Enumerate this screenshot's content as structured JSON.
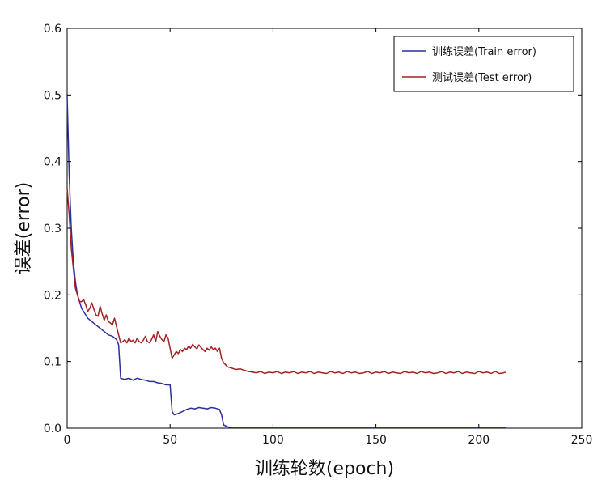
{
  "chart_data": {
    "type": "line",
    "xlabel": "训练轮数(epoch)",
    "ylabel": "误差(error)",
    "xlim": [
      0,
      250
    ],
    "ylim": [
      0,
      0.6
    ],
    "xticks": [
      0,
      50,
      100,
      150,
      200,
      250
    ],
    "yticks": [
      0.0,
      0.1,
      0.2,
      0.3,
      0.4,
      0.5,
      0.6
    ],
    "grid": false,
    "legend_position": "top-right",
    "series": [
      {
        "name": "训练误差(Train error)",
        "color": "#2b2f9a",
        "points": [
          [
            0,
            0.5
          ],
          [
            1,
            0.38
          ],
          [
            2,
            0.3
          ],
          [
            3,
            0.25
          ],
          [
            4,
            0.22
          ],
          [
            5,
            0.2
          ],
          [
            6,
            0.19
          ],
          [
            7,
            0.18
          ],
          [
            8,
            0.175
          ],
          [
            10,
            0.165
          ],
          [
            12,
            0.16
          ],
          [
            14,
            0.155
          ],
          [
            16,
            0.15
          ],
          [
            18,
            0.145
          ],
          [
            20,
            0.14
          ],
          [
            22,
            0.138
          ],
          [
            24,
            0.133
          ],
          [
            25,
            0.125
          ],
          [
            26,
            0.075
          ],
          [
            28,
            0.073
          ],
          [
            30,
            0.075
          ],
          [
            32,
            0.072
          ],
          [
            34,
            0.075
          ],
          [
            36,
            0.073
          ],
          [
            38,
            0.072
          ],
          [
            40,
            0.07
          ],
          [
            42,
            0.07
          ],
          [
            44,
            0.068
          ],
          [
            46,
            0.067
          ],
          [
            48,
            0.065
          ],
          [
            50,
            0.065
          ],
          [
            51,
            0.025
          ],
          [
            52,
            0.02
          ],
          [
            54,
            0.022
          ],
          [
            56,
            0.025
          ],
          [
            58,
            0.028
          ],
          [
            60,
            0.03
          ],
          [
            62,
            0.029
          ],
          [
            64,
            0.031
          ],
          [
            66,
            0.03
          ],
          [
            68,
            0.029
          ],
          [
            70,
            0.031
          ],
          [
            72,
            0.03
          ],
          [
            74,
            0.028
          ],
          [
            75,
            0.02
          ],
          [
            76,
            0.005
          ],
          [
            78,
            0.002
          ],
          [
            80,
            0.001
          ],
          [
            90,
            0.001
          ],
          [
            100,
            0.001
          ],
          [
            150,
            0.001
          ],
          [
            200,
            0.001
          ],
          [
            213,
            0.001
          ]
        ]
      },
      {
        "name": "测试误差(Test error)",
        "color": "#a02024",
        "points": [
          [
            0,
            0.36
          ],
          [
            1,
            0.32
          ],
          [
            2,
            0.27
          ],
          [
            3,
            0.24
          ],
          [
            4,
            0.21
          ],
          [
            5,
            0.2
          ],
          [
            6,
            0.19
          ],
          [
            7,
            0.19
          ],
          [
            8,
            0.193
          ],
          [
            9,
            0.185
          ],
          [
            10,
            0.175
          ],
          [
            11,
            0.18
          ],
          [
            12,
            0.188
          ],
          [
            13,
            0.178
          ],
          [
            14,
            0.17
          ],
          [
            15,
            0.168
          ],
          [
            16,
            0.183
          ],
          [
            17,
            0.172
          ],
          [
            18,
            0.162
          ],
          [
            19,
            0.17
          ],
          [
            20,
            0.16
          ],
          [
            21,
            0.158
          ],
          [
            22,
            0.155
          ],
          [
            23,
            0.165
          ],
          [
            24,
            0.152
          ],
          [
            25,
            0.14
          ],
          [
            26,
            0.128
          ],
          [
            27,
            0.13
          ],
          [
            28,
            0.133
          ],
          [
            29,
            0.128
          ],
          [
            30,
            0.135
          ],
          [
            31,
            0.13
          ],
          [
            32,
            0.132
          ],
          [
            33,
            0.128
          ],
          [
            34,
            0.135
          ],
          [
            35,
            0.13
          ],
          [
            36,
            0.128
          ],
          [
            37,
            0.132
          ],
          [
            38,
            0.138
          ],
          [
            39,
            0.13
          ],
          [
            40,
            0.128
          ],
          [
            41,
            0.133
          ],
          [
            42,
            0.14
          ],
          [
            43,
            0.13
          ],
          [
            44,
            0.145
          ],
          [
            45,
            0.138
          ],
          [
            46,
            0.133
          ],
          [
            47,
            0.13
          ],
          [
            48,
            0.14
          ],
          [
            49,
            0.135
          ],
          [
            50,
            0.12
          ],
          [
            51,
            0.105
          ],
          [
            52,
            0.11
          ],
          [
            53,
            0.115
          ],
          [
            54,
            0.112
          ],
          [
            55,
            0.118
          ],
          [
            56,
            0.115
          ],
          [
            57,
            0.12
          ],
          [
            58,
            0.118
          ],
          [
            59,
            0.123
          ],
          [
            60,
            0.12
          ],
          [
            61,
            0.126
          ],
          [
            62,
            0.122
          ],
          [
            63,
            0.119
          ],
          [
            64,
            0.125
          ],
          [
            65,
            0.121
          ],
          [
            66,
            0.118
          ],
          [
            67,
            0.115
          ],
          [
            68,
            0.12
          ],
          [
            69,
            0.117
          ],
          [
            70,
            0.122
          ],
          [
            71,
            0.118
          ],
          [
            72,
            0.12
          ],
          [
            73,
            0.115
          ],
          [
            74,
            0.12
          ],
          [
            75,
            0.105
          ],
          [
            76,
            0.098
          ],
          [
            77,
            0.095
          ],
          [
            78,
            0.092
          ],
          [
            80,
            0.09
          ],
          [
            82,
            0.088
          ],
          [
            84,
            0.089
          ],
          [
            86,
            0.087
          ],
          [
            88,
            0.085
          ],
          [
            90,
            0.084
          ],
          [
            92,
            0.083
          ],
          [
            94,
            0.085
          ],
          [
            96,
            0.082
          ],
          [
            98,
            0.084
          ],
          [
            100,
            0.083
          ],
          [
            102,
            0.085
          ],
          [
            104,
            0.082
          ],
          [
            106,
            0.084
          ],
          [
            108,
            0.083
          ],
          [
            110,
            0.085
          ],
          [
            112,
            0.082
          ],
          [
            114,
            0.084
          ],
          [
            116,
            0.083
          ],
          [
            118,
            0.085
          ],
          [
            120,
            0.082
          ],
          [
            122,
            0.084
          ],
          [
            124,
            0.083
          ],
          [
            126,
            0.082
          ],
          [
            128,
            0.085
          ],
          [
            130,
            0.083
          ],
          [
            132,
            0.084
          ],
          [
            134,
            0.082
          ],
          [
            136,
            0.085
          ],
          [
            138,
            0.083
          ],
          [
            140,
            0.084
          ],
          [
            142,
            0.082
          ],
          [
            144,
            0.083
          ],
          [
            146,
            0.085
          ],
          [
            148,
            0.082
          ],
          [
            150,
            0.084
          ],
          [
            152,
            0.083
          ],
          [
            154,
            0.085
          ],
          [
            156,
            0.082
          ],
          [
            158,
            0.084
          ],
          [
            160,
            0.083
          ],
          [
            162,
            0.082
          ],
          [
            164,
            0.085
          ],
          [
            166,
            0.083
          ],
          [
            168,
            0.084
          ],
          [
            170,
            0.082
          ],
          [
            172,
            0.085
          ],
          [
            174,
            0.083
          ],
          [
            176,
            0.084
          ],
          [
            178,
            0.082
          ],
          [
            180,
            0.083
          ],
          [
            182,
            0.085
          ],
          [
            184,
            0.082
          ],
          [
            186,
            0.084
          ],
          [
            188,
            0.083
          ],
          [
            190,
            0.085
          ],
          [
            192,
            0.082
          ],
          [
            194,
            0.084
          ],
          [
            196,
            0.083
          ],
          [
            198,
            0.082
          ],
          [
            200,
            0.085
          ],
          [
            202,
            0.083
          ],
          [
            204,
            0.084
          ],
          [
            206,
            0.082
          ],
          [
            208,
            0.085
          ],
          [
            210,
            0.082
          ],
          [
            212,
            0.083
          ],
          [
            213,
            0.084
          ]
        ]
      }
    ]
  }
}
